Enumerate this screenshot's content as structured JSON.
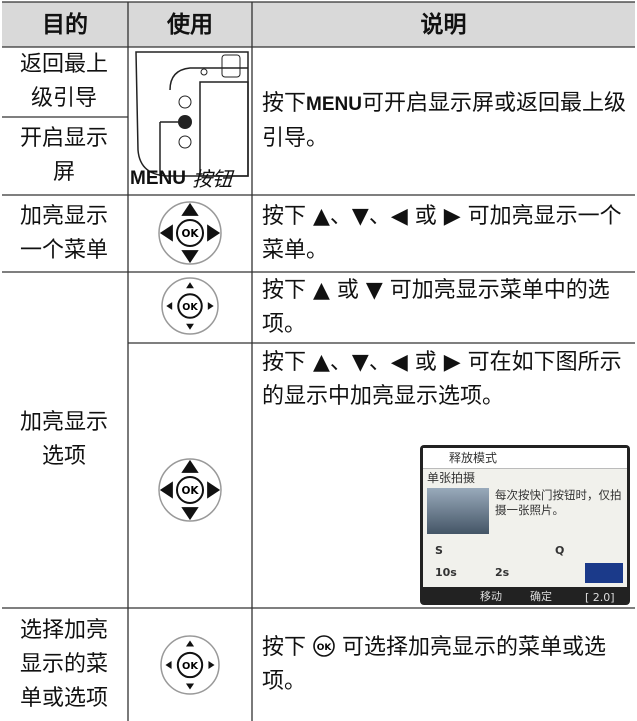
{
  "header": {
    "purpose": "目的",
    "use": "使用",
    "description": "说明"
  },
  "ok_label": "OK",
  "rows": [
    {
      "purpose": [
        "返回最上级引导",
        "开启显示屏"
      ],
      "use": {
        "button": "MENU",
        "caption": "按钮"
      },
      "description": [
        "按下",
        "MENU",
        "可开启显示屏或返回最上级引导。"
      ]
    },
    {
      "purpose": "加亮显示一个菜单",
      "description": "按下 ▲、▼、◀ 或 ▶ 可加亮显示一个菜单。"
    },
    {
      "purpose": "加亮显示选项",
      "items": [
        {
          "description": "按下 ▲ 或 ▼ 可加亮显示菜单中的选项。"
        },
        {
          "description": "按下 ▲、▼、◀ 或 ▶ 可在如下图所示的显示中加亮显示选项。",
          "screen": {
            "title": "释放模式",
            "mode": "单张拍摄",
            "hint": "每次按快门按钮时，仅拍摄一张照片。",
            "icons": [
              "S",
              "Q",
              "10s",
              "2s"
            ],
            "footer": [
              "移动",
              "确定",
              "[ 2.0]"
            ]
          }
        }
      ]
    },
    {
      "purpose": "选择加亮显示的菜单或选项",
      "description": [
        "按下",
        "可选择加亮显示的菜单或选项。"
      ]
    }
  ]
}
